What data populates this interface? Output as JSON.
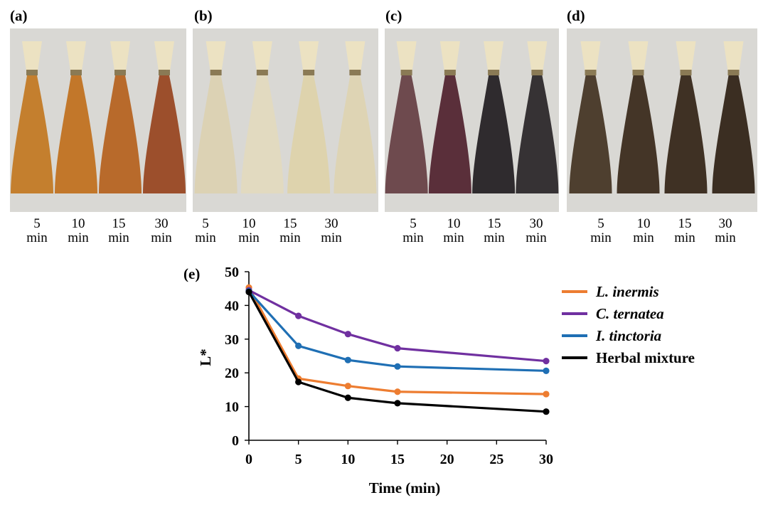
{
  "panels": [
    {
      "label": "(a)",
      "swatch_colors": [
        "#c47f2e",
        "#c2772a",
        "#b86a2b",
        "#9c4f2c"
      ]
    },
    {
      "label": "(b)",
      "swatch_colors": [
        "#dcd2b4",
        "#e2dac0",
        "#ded3ad",
        "#ded4b4"
      ]
    },
    {
      "label": "(c)",
      "swatch_colors": [
        "#6e4a4e",
        "#5a2f3a",
        "#2f2b2e",
        "#363234"
      ]
    },
    {
      "label": "(d)",
      "swatch_colors": [
        "#4e3f2f",
        "#443527",
        "#3f3124",
        "#3b2e22"
      ]
    }
  ],
  "time_labels": [
    {
      "value": "5",
      "unit": "min"
    },
    {
      "value": "10",
      "unit": "min"
    },
    {
      "value": "15",
      "unit": "min"
    },
    {
      "value": "30",
      "unit": "min"
    }
  ],
  "chart_data": {
    "type": "line",
    "panel_label": "(e)",
    "xlabel": "Time (min)",
    "ylabel": "L*",
    "xlim": [
      0,
      30
    ],
    "ylim": [
      0,
      50
    ],
    "x_ticks": [
      0,
      5,
      10,
      15,
      20,
      25,
      30
    ],
    "y_ticks": [
      0,
      10,
      20,
      30,
      40,
      50
    ],
    "grid": false,
    "legend_position": "right",
    "x": [
      0,
      5,
      10,
      15,
      30
    ],
    "series": [
      {
        "name": "L. inermis",
        "italic": true,
        "color": "#ed7d31",
        "values": [
          45.3,
          18.3,
          16.1,
          14.4,
          13.7
        ]
      },
      {
        "name": "C. ternatea",
        "italic": true,
        "color": "#7030a0",
        "values": [
          44.5,
          36.9,
          31.5,
          27.3,
          23.5
        ]
      },
      {
        "name": "I. tinctoria",
        "italic": true,
        "color": "#1f6fb4",
        "values": [
          44.2,
          28.0,
          23.8,
          21.9,
          20.6
        ]
      },
      {
        "name": "Herbal mixture",
        "italic": false,
        "color": "#000000",
        "values": [
          44.0,
          17.3,
          12.6,
          11.0,
          8.5
        ]
      }
    ]
  }
}
